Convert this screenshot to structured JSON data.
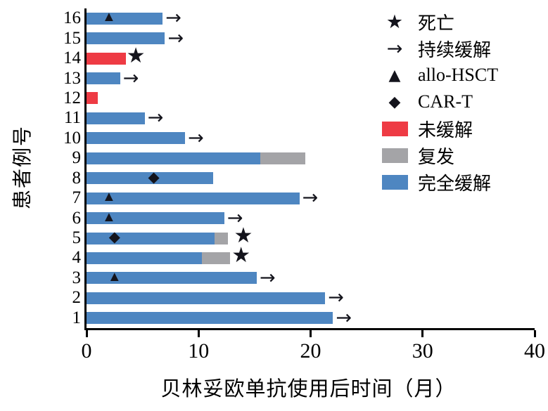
{
  "chart_data": {
    "type": "bar",
    "orientation": "horizontal",
    "title": "",
    "xlabel": "贝林妥欧单抗使用后时间（月）",
    "ylabel": "患者例号",
    "xlim": [
      0,
      40
    ],
    "xticks": [
      0,
      10,
      20,
      30,
      40
    ],
    "grid": false,
    "legend_position": "top-right",
    "colors": {
      "complete_remission": "#4e86c1",
      "relapse": "#a4a4a7",
      "no_remission": "#ee3b44",
      "marker": "#14141c"
    },
    "legend": [
      {
        "marker": "star",
        "label": "死亡"
      },
      {
        "marker": "arrow",
        "label": "持续缓解"
      },
      {
        "marker": "triangle",
        "label": "allo-HSCT"
      },
      {
        "marker": "diamond",
        "label": "CAR-T"
      },
      {
        "color_key": "no_remission",
        "label": "未缓解"
      },
      {
        "color_key": "relapse",
        "label": "复发"
      },
      {
        "color_key": "complete_remission",
        "label": "完全缓解"
      }
    ],
    "patients": [
      {
        "id": "16",
        "segments": [
          {
            "state": "complete_remission",
            "start": 0,
            "end": 6.8
          }
        ],
        "markers": [
          {
            "type": "triangle",
            "x": 2.0
          }
        ],
        "ongoing": true
      },
      {
        "id": "15",
        "segments": [
          {
            "state": "complete_remission",
            "start": 0,
            "end": 7.0
          }
        ],
        "markers": [],
        "ongoing": true
      },
      {
        "id": "14",
        "segments": [
          {
            "state": "no_remission",
            "start": 0,
            "end": 3.5
          }
        ],
        "markers": [
          {
            "type": "star",
            "x": 4.4
          }
        ],
        "ongoing": false
      },
      {
        "id": "13",
        "segments": [
          {
            "state": "complete_remission",
            "start": 0,
            "end": 3.0
          }
        ],
        "markers": [],
        "ongoing": true
      },
      {
        "id": "12",
        "segments": [
          {
            "state": "no_remission",
            "start": 0,
            "end": 1.0
          }
        ],
        "markers": [],
        "ongoing": false
      },
      {
        "id": "11",
        "segments": [
          {
            "state": "complete_remission",
            "start": 0,
            "end": 5.2
          }
        ],
        "markers": [],
        "ongoing": true
      },
      {
        "id": "10",
        "segments": [
          {
            "state": "complete_remission",
            "start": 0,
            "end": 8.8
          }
        ],
        "markers": [],
        "ongoing": true
      },
      {
        "id": "9",
        "segments": [
          {
            "state": "complete_remission",
            "start": 0,
            "end": 15.5
          },
          {
            "state": "relapse",
            "start": 15.5,
            "end": 19.5
          }
        ],
        "markers": [],
        "ongoing": false
      },
      {
        "id": "8",
        "segments": [
          {
            "state": "complete_remission",
            "start": 0,
            "end": 11.3
          }
        ],
        "markers": [
          {
            "type": "diamond",
            "x": 6.0
          }
        ],
        "ongoing": false
      },
      {
        "id": "7",
        "segments": [
          {
            "state": "complete_remission",
            "start": 0,
            "end": 19.0
          }
        ],
        "markers": [
          {
            "type": "triangle",
            "x": 2.0
          }
        ],
        "ongoing": true
      },
      {
        "id": "6",
        "segments": [
          {
            "state": "complete_remission",
            "start": 0,
            "end": 12.3
          }
        ],
        "markers": [
          {
            "type": "triangle",
            "x": 2.0
          }
        ],
        "ongoing": true
      },
      {
        "id": "5",
        "segments": [
          {
            "state": "complete_remission",
            "start": 0,
            "end": 11.4
          },
          {
            "state": "relapse",
            "start": 11.4,
            "end": 12.6
          }
        ],
        "markers": [
          {
            "type": "diamond",
            "x": 2.5
          },
          {
            "type": "star",
            "x": 14.0
          }
        ],
        "ongoing": false
      },
      {
        "id": "4",
        "segments": [
          {
            "state": "complete_remission",
            "start": 0,
            "end": 10.3
          },
          {
            "state": "relapse",
            "start": 10.3,
            "end": 12.8
          }
        ],
        "markers": [
          {
            "type": "star",
            "x": 13.8
          }
        ],
        "ongoing": false
      },
      {
        "id": "3",
        "segments": [
          {
            "state": "complete_remission",
            "start": 0,
            "end": 15.2
          }
        ],
        "markers": [
          {
            "type": "triangle",
            "x": 2.5
          }
        ],
        "ongoing": true
      },
      {
        "id": "2",
        "segments": [
          {
            "state": "complete_remission",
            "start": 0,
            "end": 21.3
          }
        ],
        "markers": [],
        "ongoing": true
      },
      {
        "id": "1",
        "segments": [
          {
            "state": "complete_remission",
            "start": 0,
            "end": 22.0
          }
        ],
        "markers": [],
        "ongoing": true
      }
    ]
  }
}
